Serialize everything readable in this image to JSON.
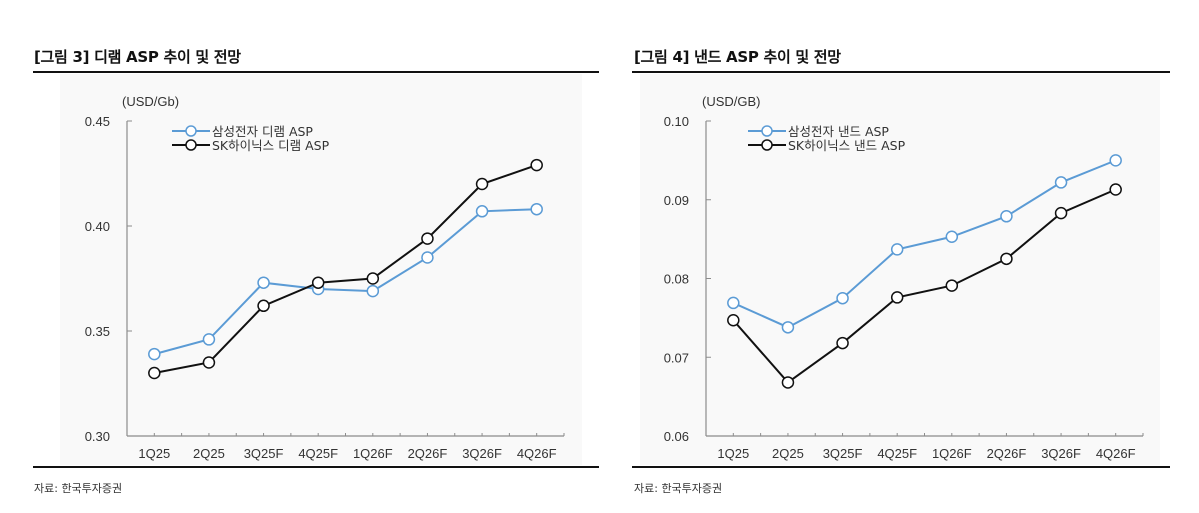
{
  "chart_data": [
    {
      "type": "line",
      "title": "[그림 3] 디램 ASP 추이 및 전망",
      "unit_label": "(USD/Gb)",
      "xlabel": "",
      "ylabel": "(USD/Gb)",
      "categories": [
        "1Q25",
        "2Q25",
        "3Q25F",
        "4Q25F",
        "1Q26F",
        "2Q26F",
        "3Q26F",
        "4Q26F"
      ],
      "ylim": [
        0.3,
        0.45
      ],
      "yticks": [
        0.3,
        0.35,
        0.4,
        0.45
      ],
      "ytick_labels": [
        "0.30",
        "0.35",
        "0.40",
        "0.45"
      ],
      "grid": false,
      "legend_position": "top-left",
      "series": [
        {
          "name": "삼성전자 디램 ASP",
          "color": "#5b9bd5",
          "values": [
            0.339,
            0.346,
            0.373,
            0.37,
            0.369,
            0.385,
            0.407,
            0.408
          ]
        },
        {
          "name": "SK하이닉스 디램 ASP",
          "color": "#111111",
          "values": [
            0.33,
            0.335,
            0.362,
            0.373,
            0.375,
            0.394,
            0.42,
            0.429
          ]
        }
      ],
      "source": "자료: 한국투자증권"
    },
    {
      "type": "line",
      "title": "[그림 4] 낸드 ASP 추이 및 전망",
      "unit_label": "(USD/GB)",
      "xlabel": "",
      "ylabel": "(USD/GB)",
      "categories": [
        "1Q25",
        "2Q25",
        "3Q25F",
        "4Q25F",
        "1Q26F",
        "2Q26F",
        "3Q26F",
        "4Q26F"
      ],
      "ylim": [
        0.06,
        0.1
      ],
      "yticks": [
        0.06,
        0.07,
        0.08,
        0.09,
        0.1
      ],
      "ytick_labels": [
        "0.06",
        "0.07",
        "0.08",
        "0.09",
        "0.10"
      ],
      "grid": false,
      "legend_position": "top-left",
      "series": [
        {
          "name": "삼성전자 낸드 ASP",
          "color": "#5b9bd5",
          "values": [
            0.0769,
            0.0738,
            0.0775,
            0.0837,
            0.0853,
            0.0879,
            0.0922,
            0.095
          ]
        },
        {
          "name": "SK하이닉스 낸드 ASP",
          "color": "#111111",
          "values": [
            0.0747,
            0.0668,
            0.0718,
            0.0776,
            0.0791,
            0.0825,
            0.0883,
            0.0913
          ]
        }
      ],
      "source": "자료: 한국투자증권"
    }
  ]
}
